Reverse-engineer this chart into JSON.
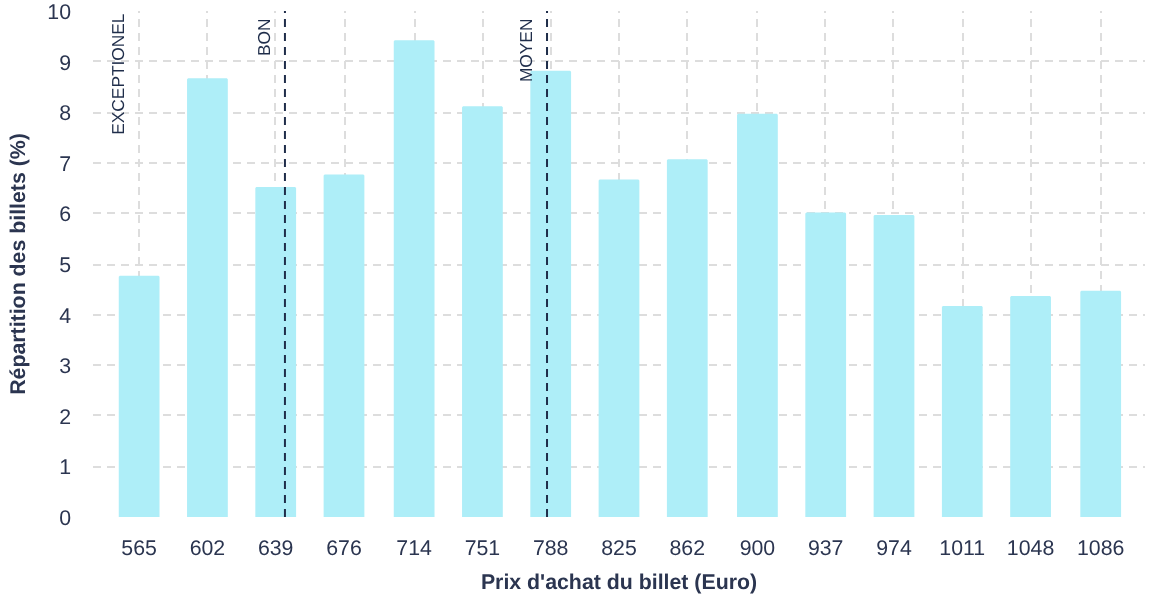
{
  "chart_data": {
    "type": "bar",
    "xlabel": "Prix d'achat du billet (Euro)",
    "ylabel": "Répartition des billets (%)",
    "x": [
      565,
      602,
      639,
      676,
      714,
      751,
      788,
      825,
      862,
      900,
      937,
      974,
      1011,
      1048,
      1086
    ],
    "values": [
      4.75,
      8.65,
      6.5,
      6.75,
      9.4,
      8.1,
      8.8,
      6.65,
      7.05,
      7.95,
      6.0,
      5.95,
      4.15,
      4.35,
      4.45
    ],
    "color": "#aeeef8",
    "xlim": [
      540,
      1110
    ],
    "xticks": [
      565,
      602,
      639,
      676,
      714,
      751,
      788,
      825,
      862,
      900,
      937,
      974,
      1011,
      1048,
      1086
    ],
    "ylim": [
      0,
      10
    ],
    "yticks": [
      0,
      1,
      2,
      3,
      4,
      5,
      6,
      7,
      8,
      9,
      10
    ],
    "grid": true,
    "annotations": [
      "EXCEPTIONEL"
    ],
    "ref_lines": [
      {
        "axis": "x",
        "value": 644,
        "label": "BON",
        "color": "#1f2d4a",
        "line_style": "dashed"
      },
      {
        "axis": "x",
        "value": 786,
        "label": "MOYEN",
        "color": "#1f2d4a",
        "line_style": "dashed"
      }
    ]
  }
}
